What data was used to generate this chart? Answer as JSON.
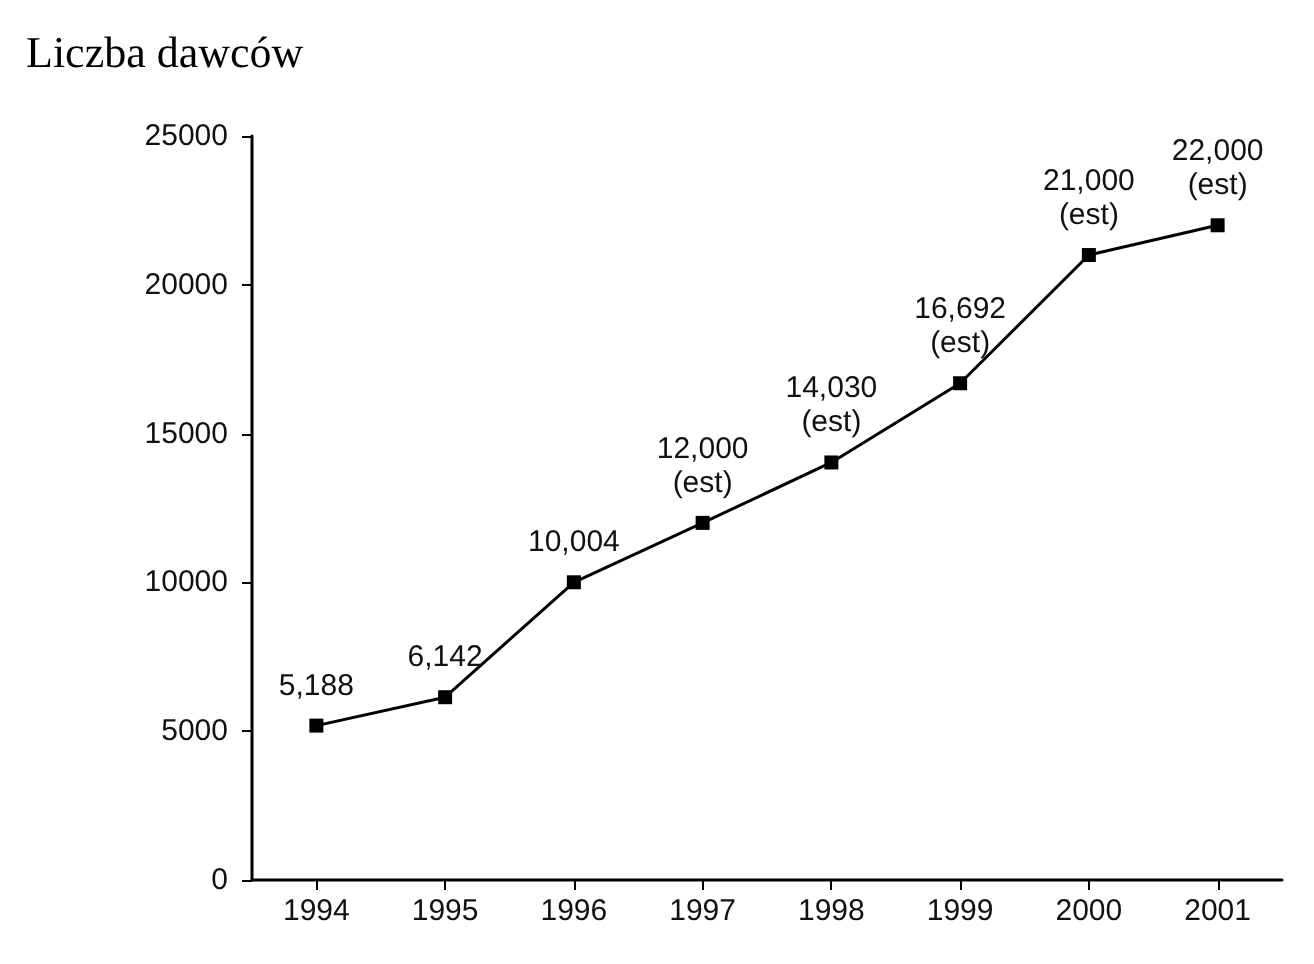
{
  "chart_data": {
    "type": "line",
    "title": "Liczba dawców",
    "categories": [
      "1994",
      "1995",
      "1996",
      "1997",
      "1998",
      "1999",
      "2000",
      "2001"
    ],
    "values": [
      5188,
      6142,
      10004,
      12000,
      14030,
      16692,
      21000,
      22000
    ],
    "value_labels": [
      "5,188",
      "6,142",
      "10,004",
      "12,000\n(est)",
      "14,030\n(est)",
      "16,692\n(est)",
      "21,000\n(est)",
      "22,000\n(est)"
    ],
    "color": "#000000",
    "marker": "square",
    "line_style": "solid",
    "ylim": [
      0,
      25000
    ],
    "yticks": [
      0,
      5000,
      10000,
      15000,
      20000,
      25000
    ]
  }
}
